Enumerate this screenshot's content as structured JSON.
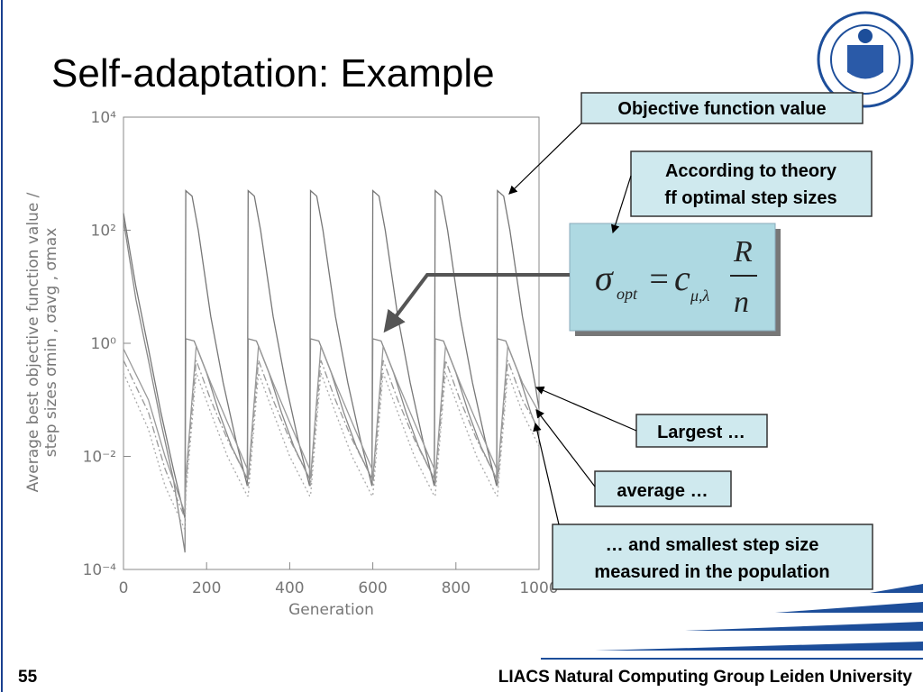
{
  "slide": {
    "title": "Self-adaptation: Example",
    "page_number": "55",
    "footer": "LIACS Natural Computing Group Leiden University"
  },
  "callouts": {
    "objective": "Objective function value",
    "theory": [
      "According to theory",
      "ff optimal step sizes"
    ],
    "largest": "Largest …",
    "average": "average …",
    "smallest": [
      "… and smallest step size",
      "measured in the population"
    ]
  },
  "formula": {
    "sigma": "σ",
    "sigma_sub": "opt",
    "equals": "=",
    "c": "c",
    "c_sub": "μ,λ",
    "numerator": "R",
    "denominator": "n"
  },
  "chart_data": {
    "type": "line",
    "log_y": true,
    "ylabel": [
      "Average best objective function value /",
      "step sizes σmin , σavg , σmax"
    ],
    "xlabel": "Generation",
    "xlim": [
      0,
      1000
    ],
    "xticks": [
      0,
      200,
      400,
      600,
      800,
      1000
    ],
    "ylim": [
      0.0001,
      10000
    ],
    "yticks": [
      {
        "value": 0.0001,
        "label": "10⁻⁴"
      },
      {
        "value": 0.01,
        "label": "10⁻²"
      },
      {
        "value": 1,
        "label": "10⁰"
      },
      {
        "value": 100,
        "label": "10²"
      },
      {
        "value": 10000,
        "label": "10⁴"
      }
    ],
    "series": [
      {
        "color": "#777777",
        "style": "solid",
        "x": [
          0,
          30,
          60,
          90,
          120,
          148,
          150,
          165,
          180,
          210,
          240,
          270,
          298,
          300,
          315,
          330,
          360,
          390,
          420,
          448,
          450,
          465,
          480,
          510,
          540,
          570,
          598,
          600,
          615,
          630,
          660,
          690,
          720,
          748,
          750,
          765,
          780,
          810,
          840,
          870,
          898,
          900,
          915,
          930,
          960,
          990,
          1000
        ],
        "values": [
          200,
          10,
          0.8,
          0.06,
          0.006,
          0.0008,
          500,
          400,
          100,
          3,
          0.2,
          0.02,
          0.003,
          500,
          400,
          100,
          3,
          0.2,
          0.02,
          0.003,
          500,
          400,
          100,
          3,
          0.2,
          0.02,
          0.003,
          500,
          400,
          100,
          3,
          0.2,
          0.02,
          0.003,
          500,
          400,
          100,
          3,
          0.2,
          0.02,
          0.003,
          500,
          400,
          100,
          3,
          0.2,
          0.07
        ]
      },
      {
        "color": "#888888",
        "style": "solid",
        "x": [
          0,
          30,
          60,
          90,
          120,
          148,
          150,
          170,
          200,
          230,
          260,
          298,
          300,
          320,
          350,
          380,
          410,
          448,
          450,
          470,
          500,
          530,
          560,
          598,
          600,
          620,
          650,
          680,
          710,
          748,
          750,
          770,
          800,
          830,
          860,
          898,
          900,
          920,
          950,
          980,
          1000
        ],
        "values": [
          150,
          6,
          0.5,
          0.04,
          0.004,
          0.0002,
          1.2,
          1.1,
          0.3,
          0.06,
          0.015,
          0.004,
          1.2,
          1.1,
          0.3,
          0.06,
          0.015,
          0.004,
          1.2,
          1.1,
          0.3,
          0.06,
          0.015,
          0.004,
          1.2,
          1.1,
          0.3,
          0.06,
          0.015,
          0.004,
          1.2,
          1.1,
          0.3,
          0.06,
          0.015,
          0.004,
          1.2,
          1.1,
          0.3,
          0.06,
          0.025
        ]
      },
      {
        "color": "#999999",
        "style": "solid",
        "x": [
          0,
          60,
          100,
          148,
          150,
          175,
          210,
          250,
          298,
          300,
          325,
          360,
          400,
          448,
          450,
          475,
          510,
          550,
          598,
          600,
          625,
          660,
          700,
          748,
          750,
          775,
          810,
          850,
          898,
          900,
          925,
          960,
          1000
        ],
        "values": [
          0.8,
          0.1,
          0.01,
          0.001,
          0.004,
          0.9,
          0.2,
          0.04,
          0.006,
          0.004,
          0.9,
          0.2,
          0.04,
          0.006,
          0.004,
          0.9,
          0.2,
          0.04,
          0.006,
          0.004,
          0.9,
          0.2,
          0.04,
          0.006,
          0.004,
          0.9,
          0.2,
          0.04,
          0.006,
          0.004,
          0.9,
          0.2,
          0.06
        ]
      },
      {
        "color": "#999999",
        "style": "dashdot",
        "x": [
          0,
          60,
          100,
          148,
          150,
          175,
          210,
          250,
          298,
          300,
          325,
          360,
          400,
          448,
          450,
          475,
          510,
          550,
          598,
          600,
          625,
          660,
          700,
          748,
          750,
          775,
          810,
          850,
          898,
          900,
          925,
          960,
          1000
        ],
        "values": [
          0.5,
          0.06,
          0.006,
          0.0008,
          0.003,
          0.5,
          0.1,
          0.02,
          0.004,
          0.003,
          0.5,
          0.1,
          0.02,
          0.004,
          0.003,
          0.5,
          0.1,
          0.02,
          0.004,
          0.003,
          0.5,
          0.1,
          0.02,
          0.004,
          0.003,
          0.5,
          0.1,
          0.02,
          0.004,
          0.003,
          0.5,
          0.1,
          0.03
        ]
      },
      {
        "color": "#aaaaaa",
        "style": "dotted",
        "x": [
          0,
          60,
          100,
          148,
          150,
          175,
          210,
          250,
          298,
          300,
          325,
          360,
          400,
          448,
          450,
          475,
          510,
          550,
          598,
          600,
          625,
          660,
          700,
          748,
          750,
          775,
          810,
          850,
          898,
          900,
          925,
          960,
          1000
        ],
        "values": [
          0.3,
          0.03,
          0.003,
          0.0005,
          0.002,
          0.3,
          0.06,
          0.01,
          0.002,
          0.002,
          0.3,
          0.06,
          0.01,
          0.002,
          0.002,
          0.3,
          0.06,
          0.01,
          0.002,
          0.002,
          0.3,
          0.06,
          0.01,
          0.002,
          0.002,
          0.3,
          0.06,
          0.01,
          0.002,
          0.002,
          0.3,
          0.06,
          0.015
        ]
      }
    ]
  }
}
